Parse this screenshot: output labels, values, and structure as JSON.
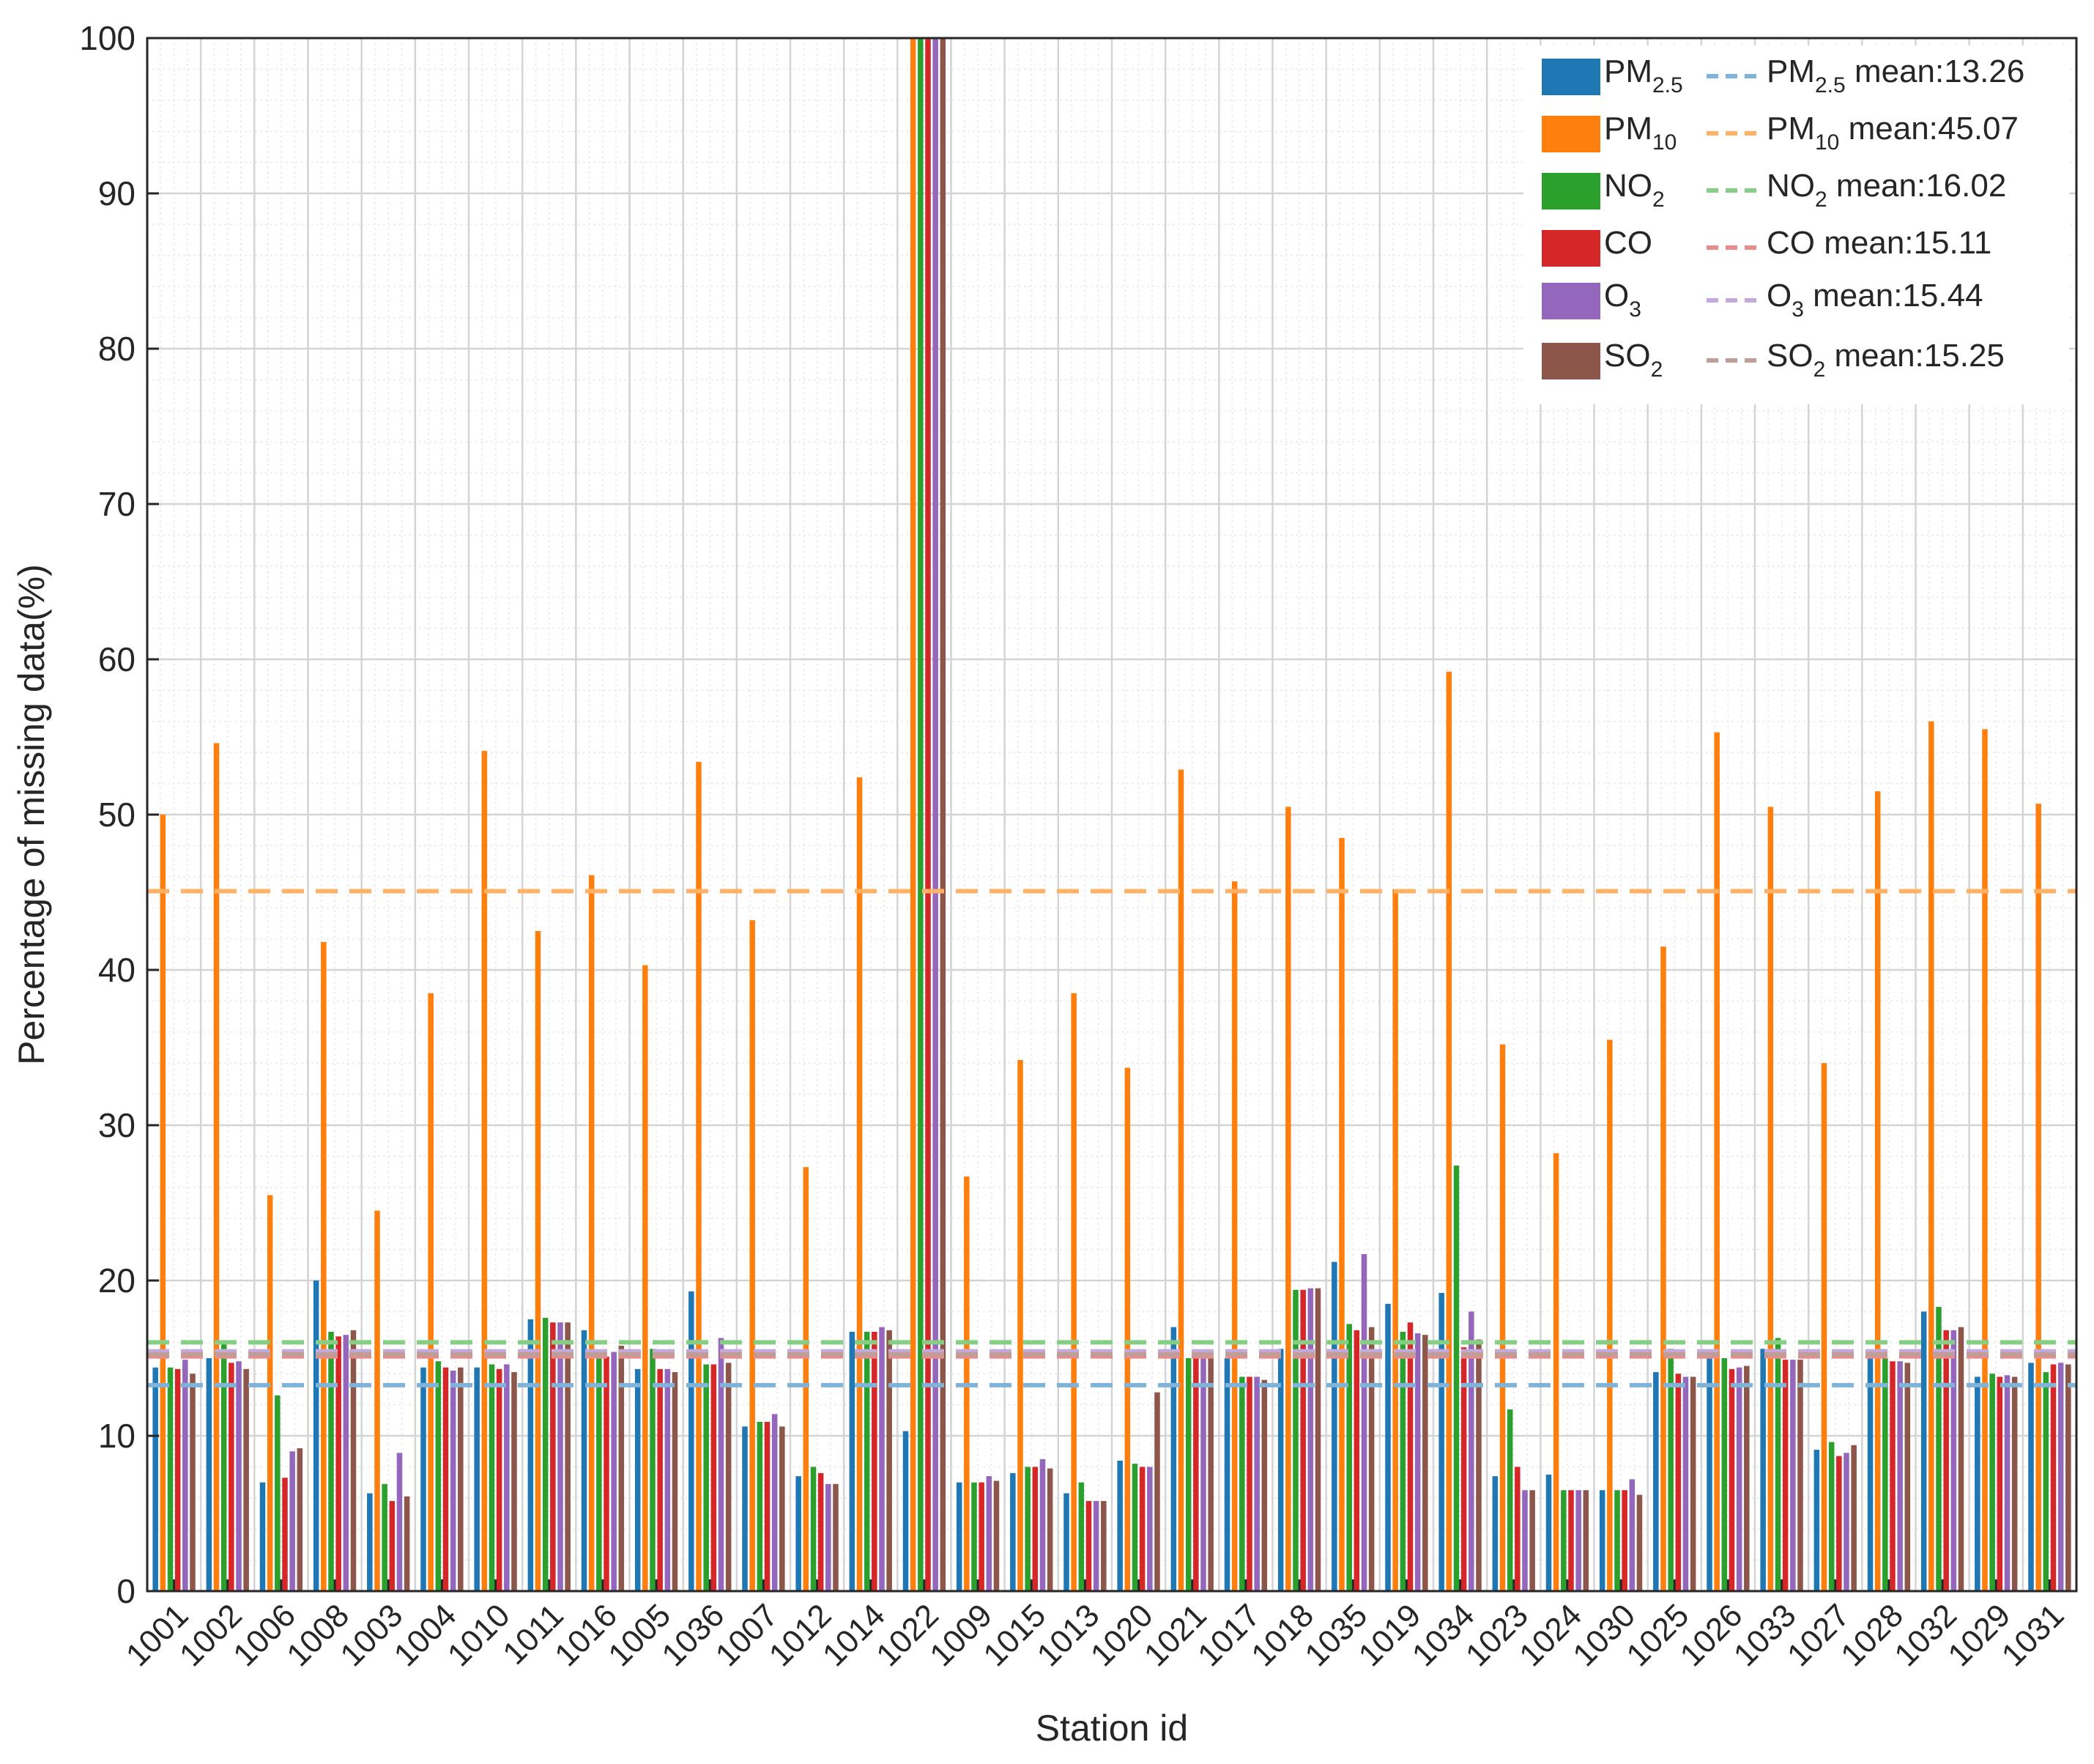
{
  "chart_data": {
    "type": "bar",
    "xlabel": "Station id",
    "ylabel": "Percentage of missing data(%)",
    "ylim": [
      0,
      100
    ],
    "yticks": [
      "0",
      "10",
      "20",
      "30",
      "40",
      "50",
      "60",
      "70",
      "80",
      "90",
      "100"
    ],
    "grid": true,
    "legend_position": "top-right",
    "categories": [
      "1001",
      "1002",
      "1006",
      "1008",
      "1003",
      "1004",
      "1010",
      "1011",
      "1016",
      "1005",
      "1036",
      "1007",
      "1012",
      "1014",
      "1022",
      "1009",
      "1015",
      "1013",
      "1020",
      "1021",
      "1017",
      "1018",
      "1035",
      "1019",
      "1034",
      "1023",
      "1024",
      "1030",
      "1025",
      "1026",
      "1033",
      "1027",
      "1028",
      "1032",
      "1029",
      "1031"
    ],
    "series": [
      {
        "name": "PM2.5",
        "legend_base": "PM",
        "legend_sub": "2.5",
        "color": "#1f77b4",
        "values": [
          14.4,
          15.0,
          7.0,
          20.0,
          6.3,
          14.4,
          14.4,
          17.5,
          16.8,
          14.3,
          19.3,
          10.6,
          7.4,
          16.7,
          10.3,
          7.0,
          7.6,
          6.3,
          8.4,
          17.0,
          15.0,
          15.6,
          21.2,
          18.5,
          19.2,
          7.4,
          7.5,
          6.5,
          14.1,
          15.0,
          15.6,
          9.1,
          15.5,
          18.0,
          13.8,
          14.7
        ]
      },
      {
        "name": "PM10",
        "legend_base": "PM",
        "legend_sub": "10",
        "color": "#ff7f0e",
        "values": [
          50.0,
          54.6,
          25.5,
          41.8,
          24.5,
          38.5,
          54.1,
          42.5,
          46.1,
          40.3,
          53.4,
          43.2,
          27.3,
          52.4,
          100,
          26.7,
          34.2,
          38.5,
          33.7,
          52.9,
          45.7,
          50.5,
          48.5,
          45.2,
          59.2,
          35.2,
          28.2,
          35.5,
          41.5,
          55.3,
          50.5,
          34.0,
          51.5,
          56.0,
          55.5,
          50.7
        ]
      },
      {
        "name": "NO2",
        "legend_base": "NO",
        "legend_sub": "2",
        "color": "#2ca02c",
        "values": [
          14.4,
          16.0,
          12.6,
          16.7,
          6.9,
          14.8,
          14.6,
          17.6,
          15.2,
          15.6,
          14.6,
          10.9,
          8.0,
          16.7,
          100,
          7.0,
          8.0,
          7.0,
          8.2,
          15.0,
          13.8,
          19.4,
          17.2,
          16.7,
          27.4,
          11.7,
          6.5,
          6.5,
          15.6,
          15.0,
          16.3,
          9.6,
          15.0,
          18.3,
          14.0,
          14.1
        ]
      },
      {
        "name": "CO",
        "legend_base": "CO",
        "legend_sub": "",
        "color": "#d62728",
        "values": [
          14.3,
          14.7,
          7.3,
          16.4,
          5.8,
          14.4,
          14.3,
          17.3,
          15.1,
          14.3,
          14.6,
          10.9,
          7.6,
          16.7,
          100,
          7.0,
          8.0,
          5.8,
          8.0,
          15.2,
          13.8,
          19.4,
          16.8,
          17.3,
          15.7,
          8.0,
          6.5,
          6.5,
          14.0,
          14.3,
          14.9,
          8.7,
          14.8,
          16.8,
          13.8,
          14.6
        ]
      },
      {
        "name": "O3",
        "legend_base": "O",
        "legend_sub": "3",
        "color": "#9467bd",
        "values": [
          14.9,
          14.8,
          9.0,
          16.5,
          8.9,
          14.2,
          14.6,
          17.3,
          15.4,
          14.3,
          16.3,
          11.4,
          6.9,
          17.0,
          100,
          7.4,
          8.5,
          5.8,
          8.0,
          15.0,
          13.8,
          19.5,
          21.7,
          16.6,
          18.0,
          6.5,
          6.5,
          7.2,
          13.8,
          14.4,
          14.9,
          8.9,
          14.8,
          16.8,
          13.9,
          14.7
        ]
      },
      {
        "name": "SO2",
        "legend_base": "SO",
        "legend_sub": "2",
        "color": "#8c564b",
        "values": [
          14.0,
          14.3,
          9.2,
          16.8,
          6.1,
          14.4,
          14.1,
          17.3,
          15.8,
          14.1,
          14.7,
          10.6,
          6.9,
          16.8,
          100,
          7.1,
          7.9,
          5.8,
          12.8,
          15.0,
          13.6,
          19.5,
          17.0,
          16.5,
          16.2,
          6.5,
          6.5,
          6.2,
          13.8,
          14.5,
          14.9,
          9.4,
          14.7,
          17.0,
          13.8,
          14.6
        ]
      }
    ],
    "mean_lines": [
      {
        "series": "PM2.5",
        "legend_base": "PM",
        "legend_sub": "2.5",
        "suffix": " mean:13.26",
        "value": 13.26,
        "color": "#7fb3d9"
      },
      {
        "series": "PM10",
        "legend_base": "PM",
        "legend_sub": "10",
        "suffix": " mean:45.07",
        "value": 45.07,
        "color": "#ffb266"
      },
      {
        "series": "NO2",
        "legend_base": "NO",
        "legend_sub": "2",
        "suffix": " mean:16.02",
        "value": 16.02,
        "color": "#85cf85"
      },
      {
        "series": "CO",
        "legend_base": "CO",
        "legend_sub": "",
        "suffix": " mean:15.11",
        "value": 15.11,
        "color": "#eb8b8c"
      },
      {
        "series": "O3",
        "legend_base": "O",
        "legend_sub": "3",
        "suffix": " mean:15.44",
        "value": 15.44,
        "color": "#c4aadc"
      },
      {
        "series": "SO2",
        "legend_base": "SO",
        "legend_sub": "2",
        "suffix": " mean:15.25",
        "value": 15.25,
        "color": "#c09d96"
      }
    ]
  }
}
